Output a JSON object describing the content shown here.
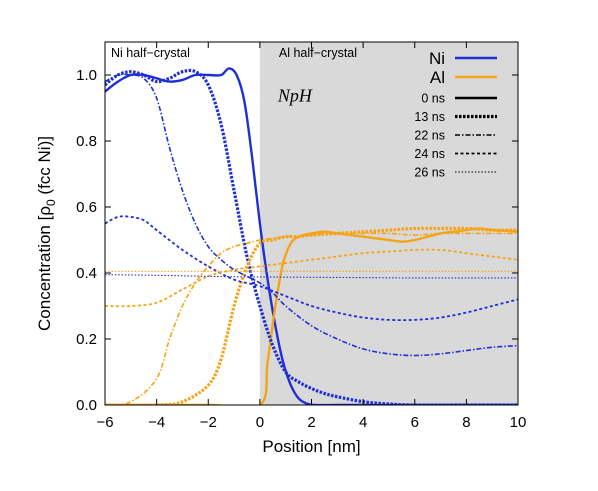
{
  "chart_data": {
    "type": "line",
    "xlabel": "Position [nm]",
    "ylabel": "Concentration [ρ",
    "ylabel_sub": "0",
    "ylabel_suffix": " (fcc Ni)]",
    "xlim": [
      -6,
      10
    ],
    "ylim": [
      0,
      1.1
    ],
    "xticks": [
      "−6",
      "−4",
      "−2",
      "0",
      "2",
      "4",
      "6",
      "8",
      "10"
    ],
    "yticks": [
      "0.0",
      "0.2",
      "0.4",
      "0.6",
      "0.8",
      "1.0"
    ],
    "regions": {
      "left_label": "Ni half−crystal",
      "right_label": "Al half−crystal",
      "boundary_x": 0,
      "right_fill": "#d9d9d9"
    },
    "annotation": "NpH",
    "colors": {
      "Ni": "#1f2fd6",
      "Al": "#f5a418"
    },
    "element_legend": [
      {
        "name": "Ni",
        "color": "#1f2fd6"
      },
      {
        "name": "Al",
        "color": "#f5a418"
      }
    ],
    "time_legend": [
      "0 ns",
      "13 ns",
      "22 ns",
      "24 ns",
      "26 ns"
    ],
    "series": [
      {
        "element": "Ni",
        "time": "0 ns",
        "x": [
          -6,
          -5.5,
          -5,
          -4.5,
          -4,
          -3.5,
          -3,
          -2.5,
          -2,
          -1.5,
          -1.2,
          -0.9,
          -0.6,
          -0.3,
          0,
          0.3,
          0.6,
          0.9,
          1.2,
          1.5,
          1.8,
          2.1,
          3,
          4,
          6,
          8,
          10
        ],
        "y": [
          0.95,
          0.98,
          1.0,
          1.0,
          0.99,
          0.98,
          0.985,
          1.0,
          1.0,
          1.0,
          1.02,
          1.0,
          0.92,
          0.75,
          0.55,
          0.38,
          0.24,
          0.13,
          0.06,
          0.02,
          0.005,
          0,
          0,
          0,
          0,
          0,
          0
        ]
      },
      {
        "element": "Al",
        "time": "0 ns",
        "x": [
          -6,
          -2,
          0,
          0.3,
          0.6,
          0.9,
          1.2,
          1.5,
          2,
          2.5,
          3,
          3.5,
          4,
          4.5,
          5,
          5.5,
          6,
          6.5,
          7,
          7.5,
          8,
          8.5,
          9,
          9.5,
          10
        ],
        "y": [
          0,
          0,
          0,
          0.13,
          0.3,
          0.43,
          0.49,
          0.51,
          0.52,
          0.525,
          0.52,
          0.515,
          0.51,
          0.505,
          0.5,
          0.495,
          0.5,
          0.51,
          0.52,
          0.525,
          0.53,
          0.535,
          0.53,
          0.528,
          0.525
        ]
      },
      {
        "element": "Ni",
        "time": "13 ns",
        "x": [
          -6,
          -5.5,
          -5,
          -4.5,
          -4,
          -3.5,
          -3,
          -2.5,
          -2,
          -1.5,
          -1,
          -0.5,
          0,
          0.5,
          1,
          1.5,
          2,
          2.5,
          3,
          4,
          5,
          6,
          8,
          10
        ],
        "y": [
          0.97,
          1.0,
          1.01,
          1.0,
          0.98,
          0.99,
          1.01,
          1.01,
          0.97,
          0.85,
          0.65,
          0.45,
          0.3,
          0.18,
          0.1,
          0.07,
          0.05,
          0.035,
          0.025,
          0.01,
          0.003,
          0,
          0,
          0
        ]
      },
      {
        "element": "Al",
        "time": "13 ns",
        "x": [
          -6,
          -4,
          -3,
          -2,
          -1.5,
          -1,
          -0.5,
          0,
          0.5,
          1,
          1.5,
          2,
          3,
          4,
          5,
          6,
          7,
          8,
          9,
          10
        ],
        "y": [
          0,
          0,
          0.01,
          0.06,
          0.14,
          0.3,
          0.42,
          0.49,
          0.5,
          0.51,
          0.51,
          0.515,
          0.52,
          0.525,
          0.53,
          0.535,
          0.535,
          0.535,
          0.53,
          0.53
        ]
      },
      {
        "element": "Ni",
        "time": "22 ns",
        "x": [
          -6,
          -5.5,
          -5,
          -4.5,
          -4,
          -3.5,
          -3,
          -2.5,
          -2,
          -1.5,
          -1,
          -0.5,
          0,
          0.5,
          1,
          2,
          3,
          4,
          5,
          6,
          7,
          8,
          9,
          10
        ],
        "y": [
          0.98,
          1.0,
          1.0,
          0.99,
          0.93,
          0.78,
          0.65,
          0.55,
          0.48,
          0.44,
          0.41,
          0.39,
          0.37,
          0.34,
          0.3,
          0.24,
          0.2,
          0.17,
          0.155,
          0.15,
          0.155,
          0.165,
          0.175,
          0.18
        ]
      },
      {
        "element": "Al",
        "time": "22 ns",
        "x": [
          -6,
          -5,
          -4,
          -3.5,
          -3,
          -2.5,
          -2,
          -1.5,
          -1,
          -0.5,
          0,
          0.5,
          1,
          2,
          3,
          4,
          5,
          6,
          7,
          8,
          9,
          10
        ],
        "y": [
          0,
          0.01,
          0.08,
          0.2,
          0.3,
          0.37,
          0.42,
          0.46,
          0.48,
          0.49,
          0.5,
          0.505,
          0.51,
          0.515,
          0.52,
          0.52,
          0.52,
          0.515,
          0.52,
          0.52,
          0.52,
          0.52
        ]
      },
      {
        "element": "Ni",
        "time": "24 ns",
        "x": [
          -6,
          -5.5,
          -5,
          -4.5,
          -4,
          -3,
          -2,
          -1,
          0,
          1,
          2,
          3,
          4,
          5,
          6,
          7,
          8,
          9,
          10
        ],
        "y": [
          0.55,
          0.57,
          0.57,
          0.56,
          0.53,
          0.47,
          0.42,
          0.38,
          0.36,
          0.33,
          0.3,
          0.28,
          0.265,
          0.258,
          0.258,
          0.265,
          0.28,
          0.3,
          0.32
        ]
      },
      {
        "element": "Al",
        "time": "24 ns",
        "x": [
          -6,
          -5,
          -4,
          -3,
          -2,
          -1,
          0,
          1,
          2,
          3,
          4,
          5,
          6,
          7,
          8,
          9,
          10
        ],
        "y": [
          0.3,
          0.3,
          0.31,
          0.35,
          0.39,
          0.41,
          0.42,
          0.43,
          0.44,
          0.45,
          0.46,
          0.465,
          0.47,
          0.47,
          0.46,
          0.45,
          0.44
        ]
      },
      {
        "element": "Ni",
        "time": "26 ns",
        "x": [
          -6,
          -4,
          -2,
          0,
          2,
          4,
          6,
          8,
          10
        ],
        "y": [
          0.395,
          0.393,
          0.39,
          0.388,
          0.387,
          0.386,
          0.385,
          0.385,
          0.385
        ]
      },
      {
        "element": "Al",
        "time": "26 ns",
        "x": [
          -6,
          -4,
          -2,
          0,
          2,
          4,
          6,
          8,
          10
        ],
        "y": [
          0.405,
          0.405,
          0.405,
          0.405,
          0.405,
          0.405,
          0.405,
          0.405,
          0.405
        ]
      }
    ]
  }
}
